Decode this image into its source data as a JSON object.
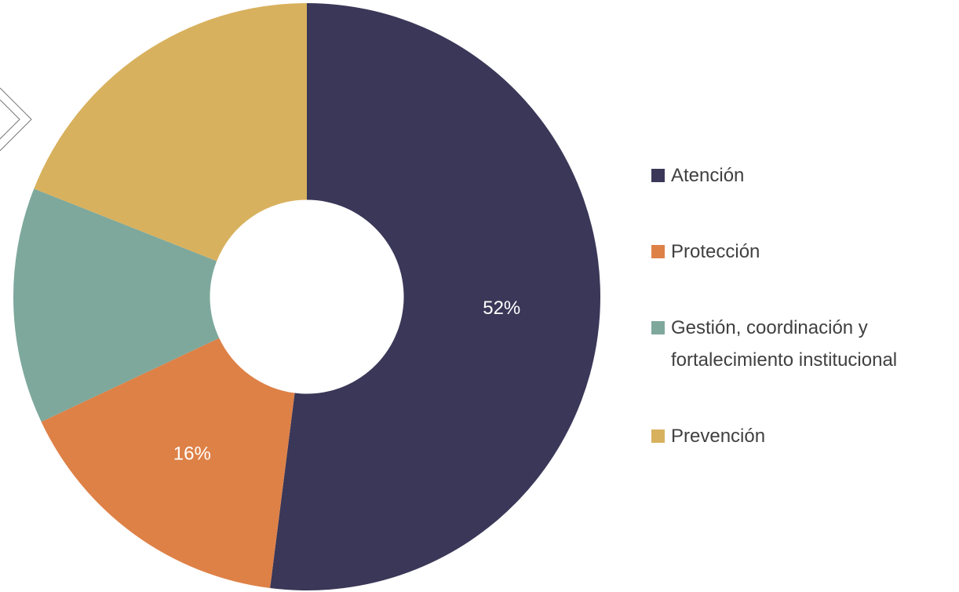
{
  "chart_data": {
    "type": "donut",
    "categories": [
      "Atención",
      "Protección",
      "Gestión, coordinación y fortalecimiento institucional",
      "Prevención"
    ],
    "values": [
      52,
      16,
      13,
      19
    ],
    "value_labels": [
      "52%",
      "16%",
      null,
      null
    ],
    "colors": [
      "#3a3758",
      "#de8147",
      "#7ea89c",
      "#d8b15e"
    ],
    "legend": "right"
  }
}
